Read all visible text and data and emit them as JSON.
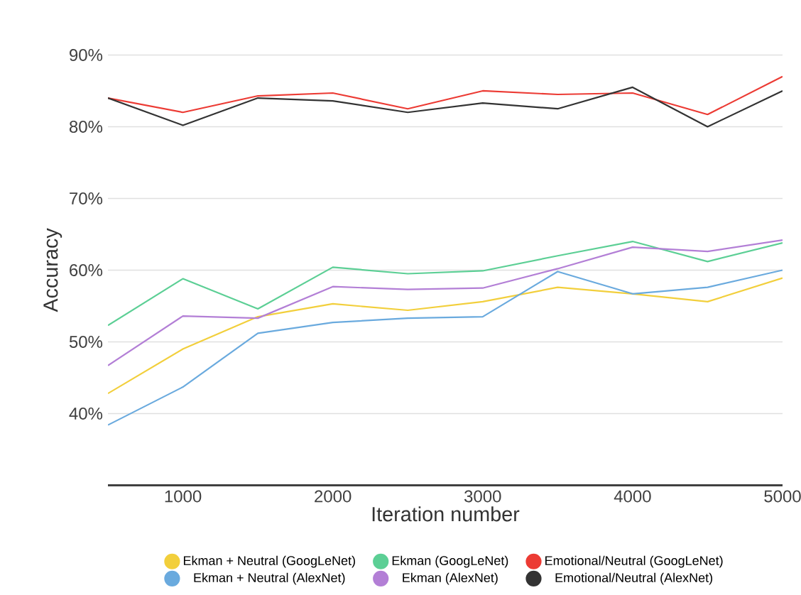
{
  "chart_data": {
    "type": "line",
    "xlabel": "Iteration number",
    "ylabel": "Accuracy",
    "x": [
      500,
      1000,
      1500,
      2000,
      2500,
      3000,
      3500,
      4000,
      4500,
      5000
    ],
    "xlim": [
      500,
      5000
    ],
    "xticks": [
      1000,
      2000,
      3000,
      4000,
      5000
    ],
    "ylim": [
      30,
      90
    ],
    "yticks": [
      {
        "value": 40,
        "label": "40%"
      },
      {
        "value": 50,
        "label": "50%"
      },
      {
        "value": 60,
        "label": "60%"
      },
      {
        "value": 70,
        "label": "70%"
      },
      {
        "value": 80,
        "label": "80%"
      },
      {
        "value": 90,
        "label": "90%"
      }
    ],
    "grid": "y",
    "legend": "bottom",
    "line_style": "solid",
    "series": [
      {
        "name": "Ekman + Neutral (GoogLeNet)",
        "color": "#f2cf3c",
        "values": [
          42.8,
          49,
          53.5,
          55.3,
          54.4,
          55.6,
          57.6,
          56.7,
          55.6,
          58.9
        ]
      },
      {
        "name": "Ekman (GoogLeNet)",
        "color": "#5ccf95",
        "values": [
          52.3,
          58.8,
          54.6,
          60.4,
          59.5,
          59.9,
          62,
          64,
          61.2,
          63.8
        ]
      },
      {
        "name": "Emotional/Neutral (GoogLeNet)",
        "color": "#ec3b34",
        "values": [
          84,
          82,
          84.3,
          84.7,
          82.5,
          85,
          84.5,
          84.7,
          81.7,
          87
        ]
      },
      {
        "name": "Ekman + Neutral (AlexNet)",
        "color": "#6aaade",
        "values": [
          38.4,
          43.7,
          51.2,
          52.7,
          53.3,
          53.5,
          59.8,
          56.7,
          57.6,
          60
        ]
      },
      {
        "name": "Ekman (AlexNet)",
        "color": "#b37fd6",
        "values": [
          46.7,
          53.6,
          53.3,
          57.7,
          57.3,
          57.5,
          60.2,
          63.2,
          62.6,
          64.2
        ]
      },
      {
        "name": "Emotional/Neutral (AlexNet)",
        "color": "#333333",
        "values": [
          84,
          80.2,
          84,
          83.6,
          82,
          83.3,
          82.5,
          85.5,
          80,
          85
        ]
      }
    ]
  }
}
